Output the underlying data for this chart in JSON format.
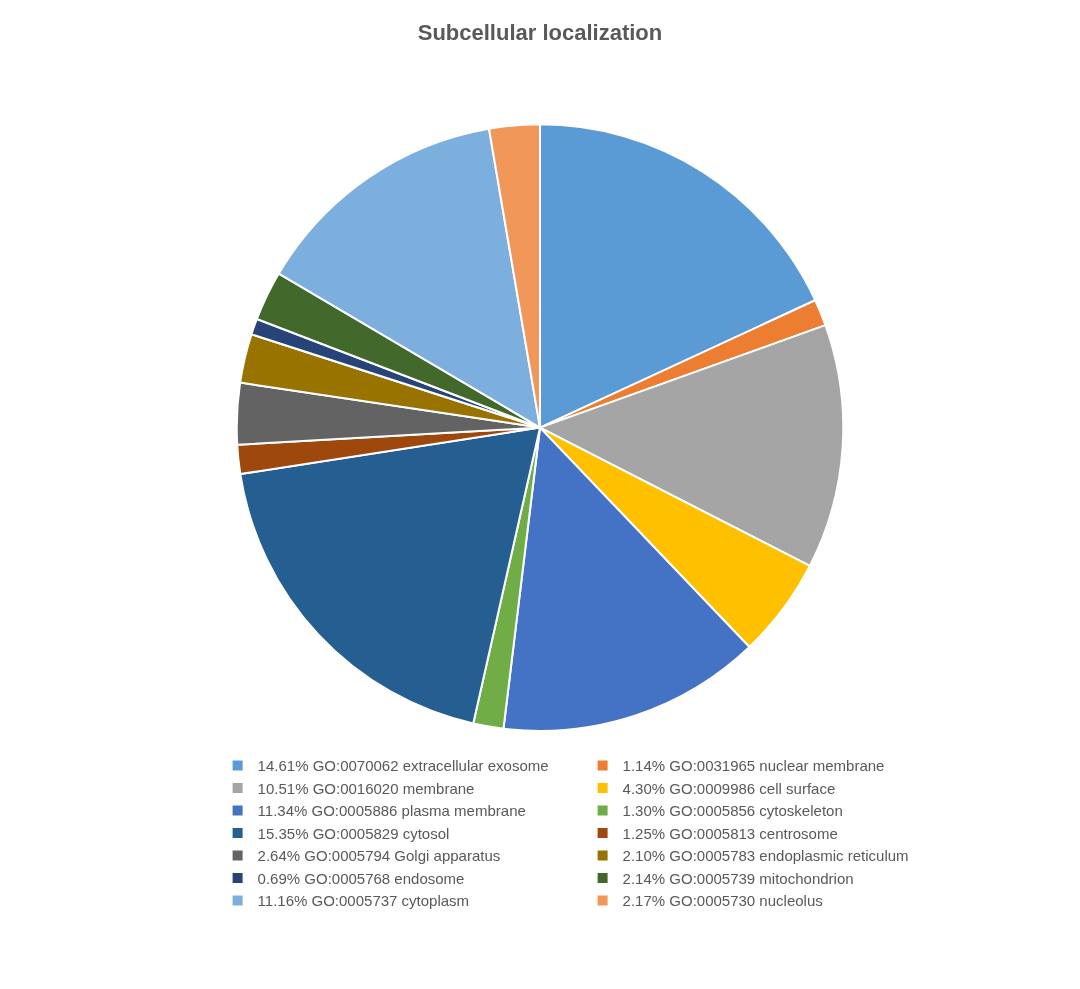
{
  "chart_data": {
    "type": "pie",
    "title": "Subcellular localization",
    "categories": [
      "14.61% GO:0070062 extracellular exosome",
      "1.14% GO:0031965 nuclear membrane",
      "10.51% GO:0016020 membrane",
      "4.30% GO:0009986 cell surface",
      "11.34% GO:0005886 plasma membrane",
      "1.30% GO:0005856 cytoskeleton",
      "15.35% GO:0005829 cytosol",
      "1.25% GO:0005813 centrosome",
      "2.64% GO:0005794 Golgi apparatus",
      "2.10% GO:0005783 endoplasmic reticulum",
      "0.69% GO:0005768 endosome",
      "2.14% GO:0005739 mitochondrion",
      "11.16% GO:0005737 cytoplasm",
      "2.17% GO:0005730 nucleolus"
    ],
    "values": [
      14.61,
      1.14,
      10.51,
      4.3,
      11.34,
      1.3,
      15.35,
      1.25,
      2.64,
      2.1,
      0.69,
      2.14,
      11.16,
      2.17
    ],
    "colors": [
      "#5b9bd5",
      "#ed7d31",
      "#a5a5a5",
      "#ffc000",
      "#4472c4",
      "#70ad47",
      "#255e91",
      "#9e480e",
      "#636363",
      "#997300",
      "#264478",
      "#43682b",
      "#7cafdd",
      "#f1975a"
    ],
    "legend": "bottom"
  }
}
